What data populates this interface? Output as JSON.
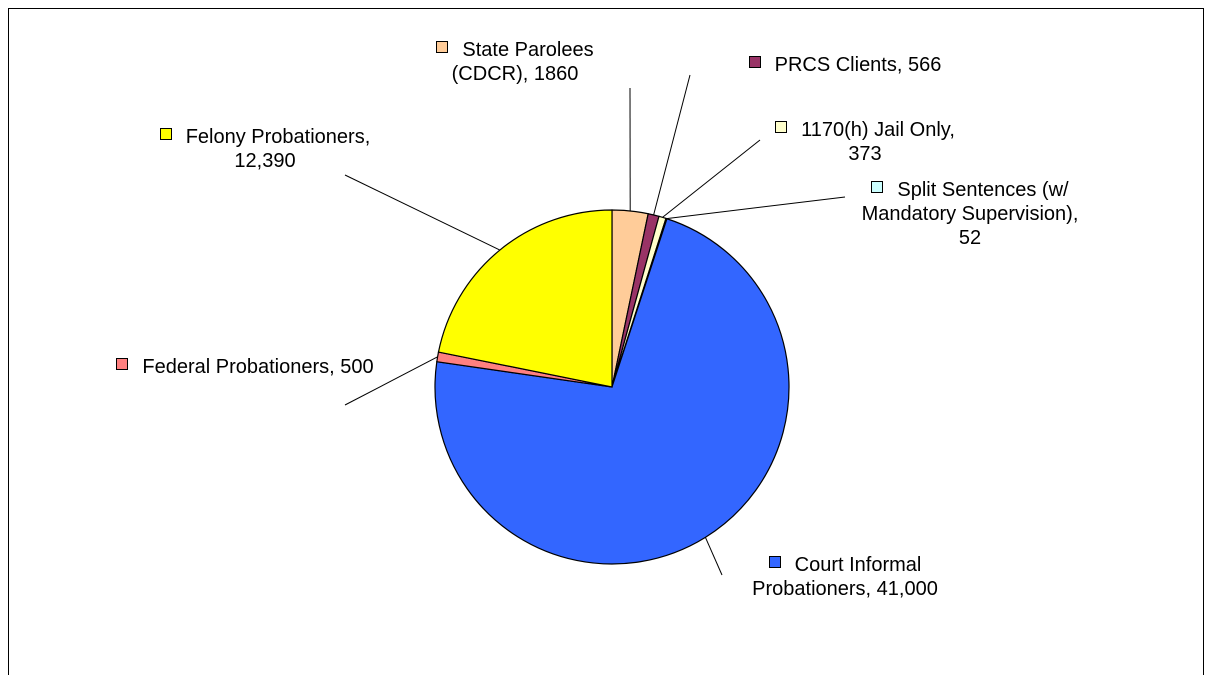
{
  "chart_data": {
    "type": "pie",
    "categories": [
      "State Parolees (CDCR)",
      "PRCS Clients",
      "1170(h) Jail Only",
      "Split Sentences (w/ Mandatory Supervision)",
      "Court Informal Probationers",
      "Federal Probationers",
      "Felony Probationers"
    ],
    "values": [
      1860,
      566,
      373,
      52,
      41000,
      500,
      12390
    ],
    "value_labels": [
      "1860",
      "566",
      "373",
      "52",
      "41,000",
      "500",
      "12,390"
    ],
    "colors": [
      "#ffcc99",
      "#993366",
      "#ffffcc",
      "#ccffff",
      "#3366ff",
      "#ff8080",
      "#ffff00"
    ]
  }
}
